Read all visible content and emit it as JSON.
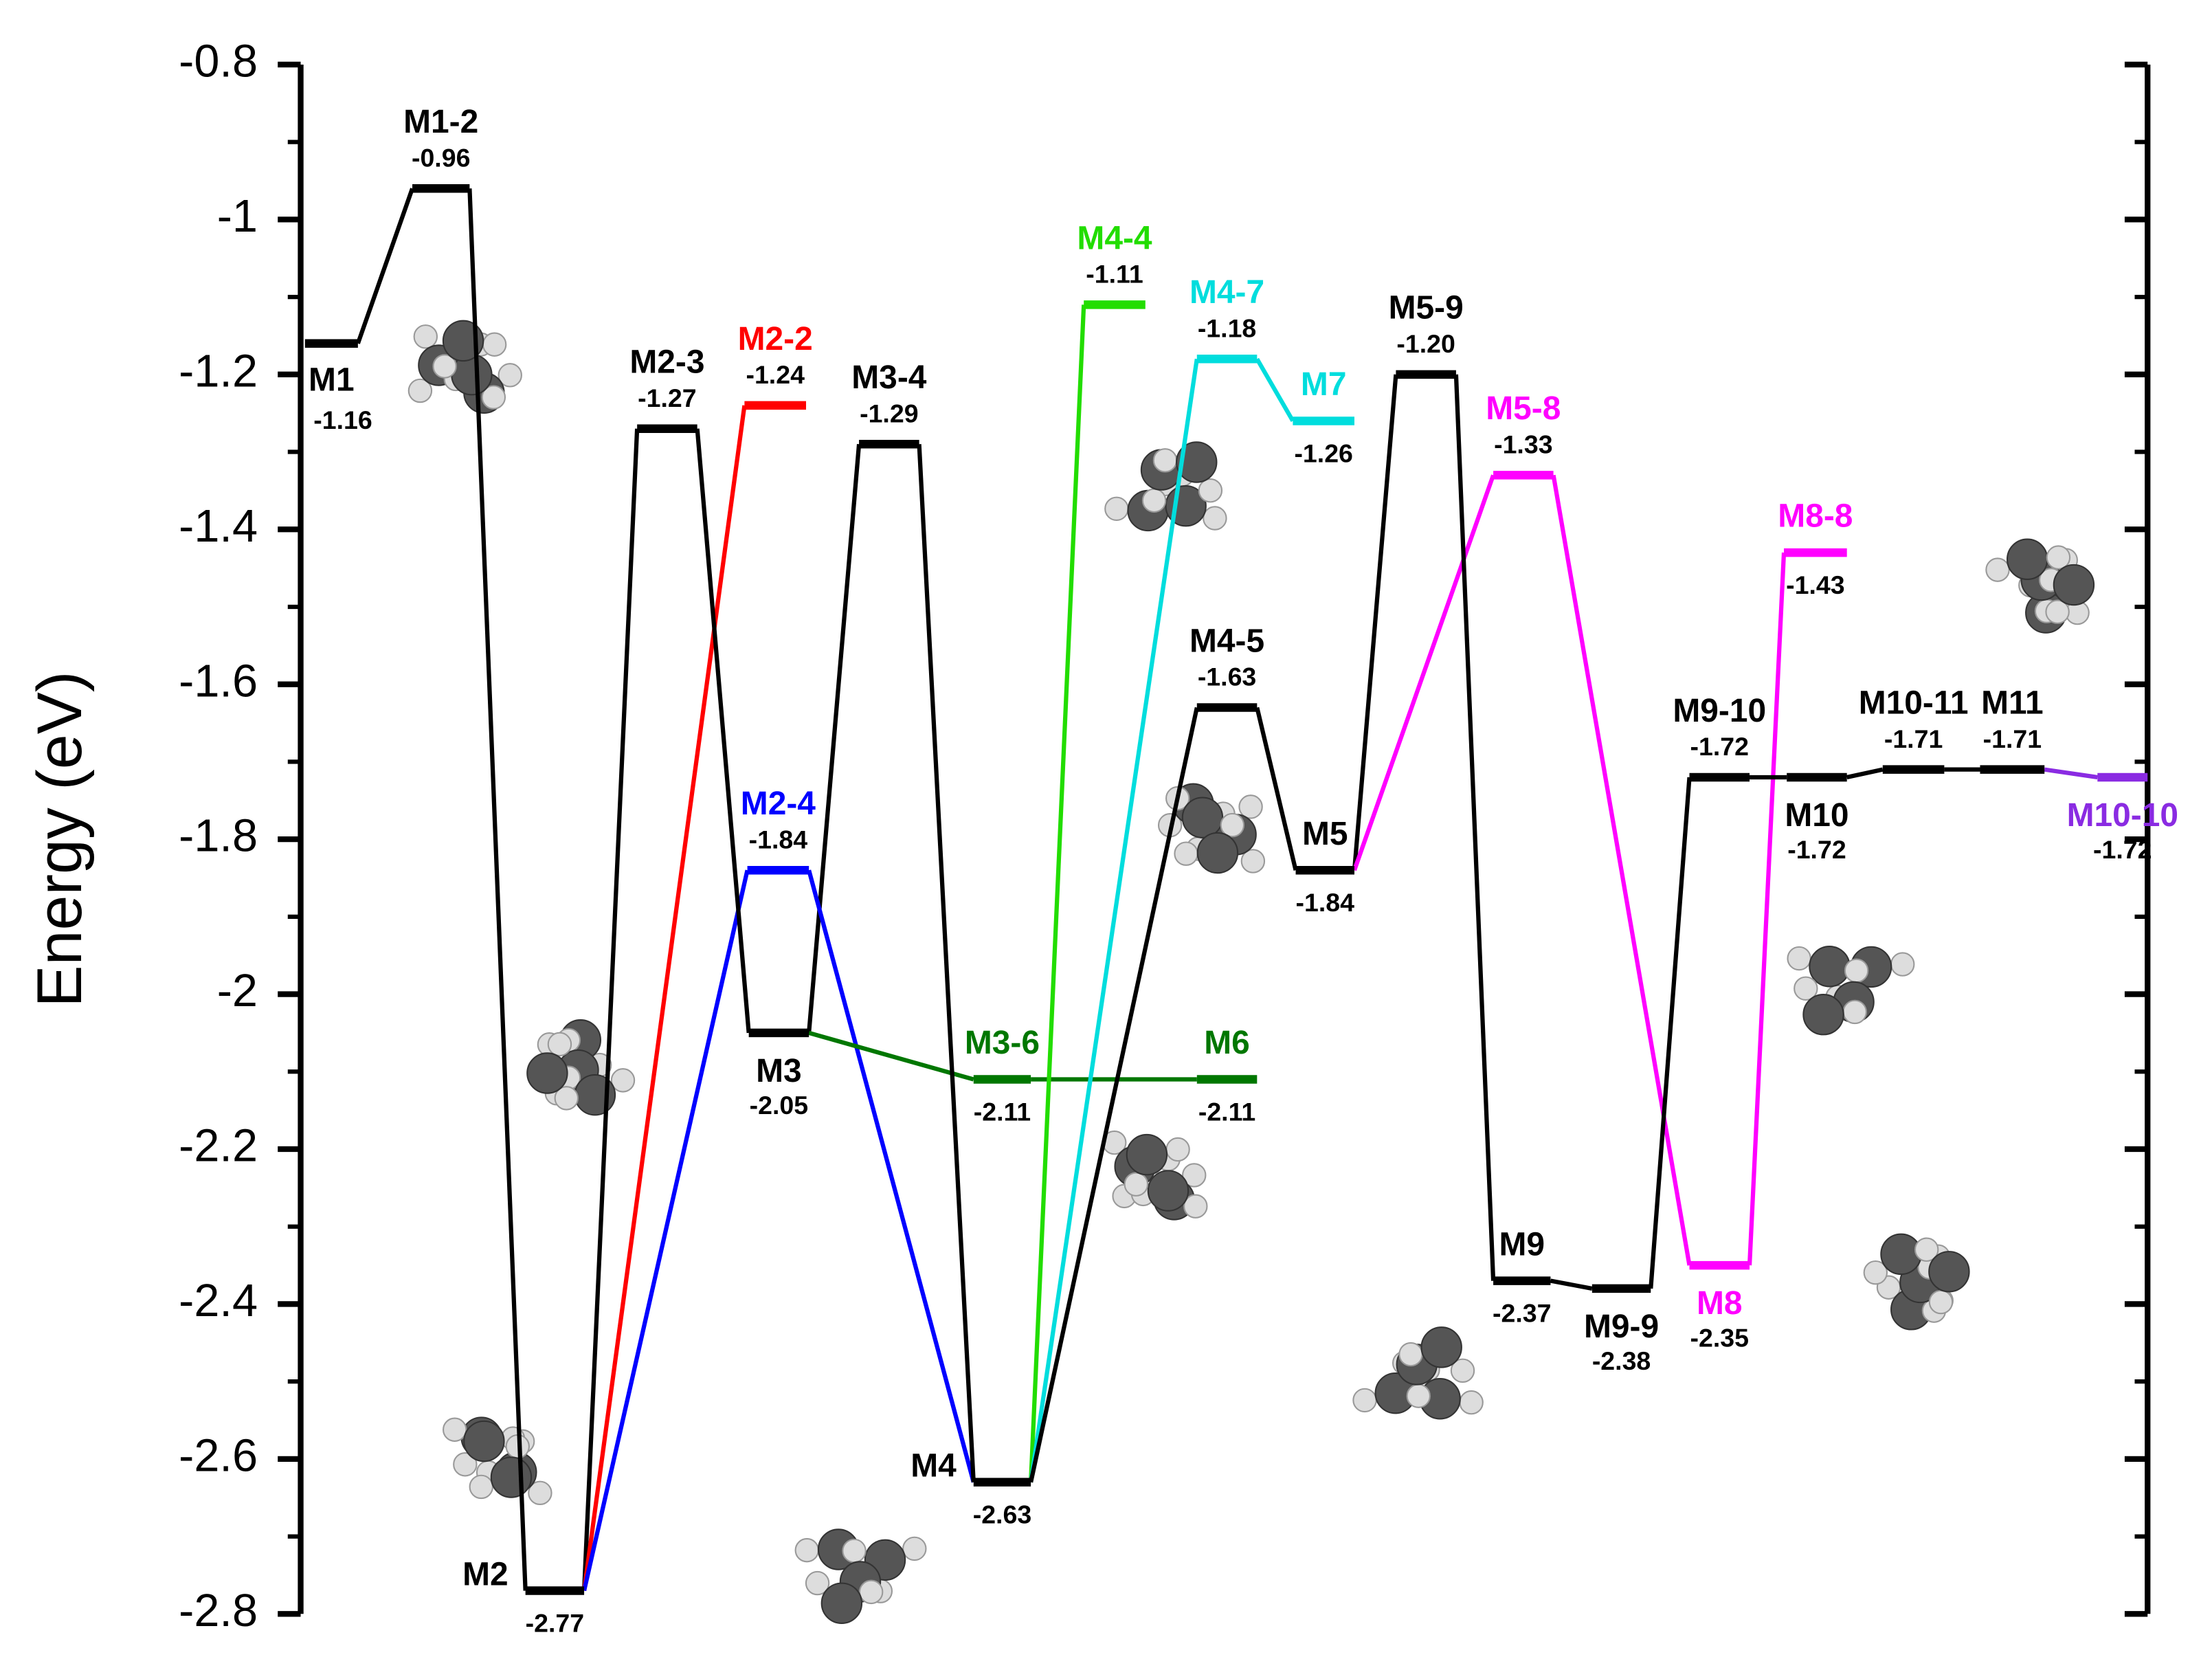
{
  "chart_data": {
    "type": "energy-diagram",
    "y_label": "Energy (eV)",
    "ylim": [
      -2.8,
      -0.8
    ],
    "yticks": [
      -0.8,
      -1,
      -1.2,
      -1.4,
      -1.6,
      -1.8,
      -2,
      -2.2,
      -2.4,
      -2.6,
      -2.8
    ],
    "levels": [
      {
        "name": "M1",
        "value": -1.16,
        "value_label": "-1.16",
        "color": "#000000"
      },
      {
        "name": "M1-2",
        "value": -0.96,
        "value_label": "-0.96",
        "color": "#000000"
      },
      {
        "name": "M2",
        "value": -2.77,
        "value_label": "-2.77",
        "color": "#000000"
      },
      {
        "name": "M2-3",
        "value": -1.27,
        "value_label": "-1.27",
        "color": "#000000"
      },
      {
        "name": "M2-2",
        "value": -1.24,
        "value_label": "-1.24",
        "color": "#ff0000"
      },
      {
        "name": "M3",
        "value": -2.05,
        "value_label": "-2.05",
        "color": "#000000"
      },
      {
        "name": "M2-4",
        "value": -1.84,
        "value_label": "-1.84",
        "color": "#0000ff"
      },
      {
        "name": "M3-4",
        "value": -1.29,
        "value_label": "-1.29",
        "color": "#000000"
      },
      {
        "name": "M4",
        "value": -2.63,
        "value_label": "-2.63",
        "color": "#000000"
      },
      {
        "name": "M3-6",
        "value": -2.11,
        "value_label": "-2.11",
        "color": "#007700"
      },
      {
        "name": "M6",
        "value": -2.11,
        "value_label": "-2.11",
        "color": "#007700"
      },
      {
        "name": "M4-4",
        "value": -1.11,
        "value_label": "-1.11",
        "color": "#22dd00"
      },
      {
        "name": "M4-7",
        "value": -1.18,
        "value_label": "-1.18",
        "color": "#00dddd"
      },
      {
        "name": "M7",
        "value": -1.26,
        "value_label": "-1.26",
        "color": "#00dddd"
      },
      {
        "name": "M4-5",
        "value": -1.63,
        "value_label": "-1.63",
        "color": "#000000"
      },
      {
        "name": "M5",
        "value": -1.84,
        "value_label": "-1.84",
        "color": "#000000"
      },
      {
        "name": "M5-9",
        "value": -1.2,
        "value_label": "-1.20",
        "color": "#000000"
      },
      {
        "name": "M5-8",
        "value": -1.33,
        "value_label": "-1.33",
        "color": "#ff00ff"
      },
      {
        "name": "M9",
        "value": -2.37,
        "value_label": "-2.37",
        "color": "#000000"
      },
      {
        "name": "M9-9",
        "value": -2.38,
        "value_label": "-2.38",
        "color": "#000000"
      },
      {
        "name": "M8",
        "value": -2.35,
        "value_label": "-2.35",
        "color": "#ff00ff"
      },
      {
        "name": "M8-8",
        "value": -1.43,
        "value_label": "-1.43",
        "color": "#ff00ff"
      },
      {
        "name": "M9-10",
        "value": -1.72,
        "value_label": "-1.72",
        "color": "#000000"
      },
      {
        "name": "M10",
        "value": -1.72,
        "value_label": "-1.72",
        "color": "#000000"
      },
      {
        "name": "M10-11",
        "value": -1.71,
        "value_label": "-1.71",
        "color": "#000000"
      },
      {
        "name": "M11",
        "value": -1.71,
        "value_label": "-1.71",
        "color": "#000000"
      },
      {
        "name": "M10-10",
        "value": -1.72,
        "value_label": "-1.72",
        "color": "#8a2be2"
      }
    ]
  }
}
